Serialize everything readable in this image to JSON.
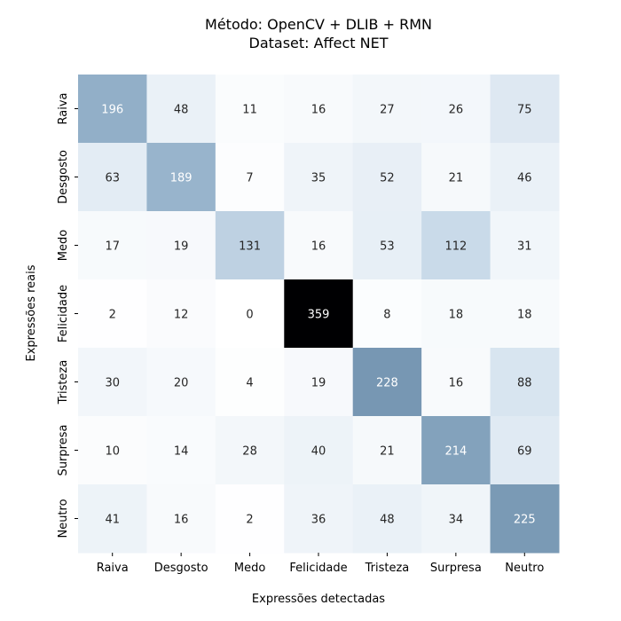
{
  "chart_data": {
    "type": "heatmap",
    "title": "Método: OpenCV + DLIB + RMN",
    "subtitle": "Dataset: Affect NET",
    "xlabel": "Expressões detectadas",
    "ylabel": "Expressões reais",
    "x_categories": [
      "Raiva",
      "Desgosto",
      "Medo",
      "Felicidade",
      "Tristeza",
      "Surpresa",
      "Neutro"
    ],
    "y_categories": [
      "Raiva",
      "Desgosto",
      "Medo",
      "Felicidade",
      "Tristeza",
      "Surpresa",
      "Neutro"
    ],
    "values": [
      [
        196,
        48,
        11,
        16,
        27,
        26,
        75
      ],
      [
        63,
        189,
        7,
        35,
        52,
        21,
        46
      ],
      [
        17,
        19,
        131,
        16,
        53,
        112,
        31
      ],
      [
        2,
        12,
        0,
        359,
        8,
        18,
        18
      ],
      [
        30,
        20,
        4,
        19,
        228,
        16,
        88
      ],
      [
        10,
        14,
        28,
        40,
        21,
        214,
        69
      ],
      [
        41,
        16,
        2,
        36,
        48,
        34,
        225
      ]
    ],
    "value_range": [
      0,
      359
    ],
    "colormap": "bone_r",
    "colorbar": false,
    "grid": false
  }
}
